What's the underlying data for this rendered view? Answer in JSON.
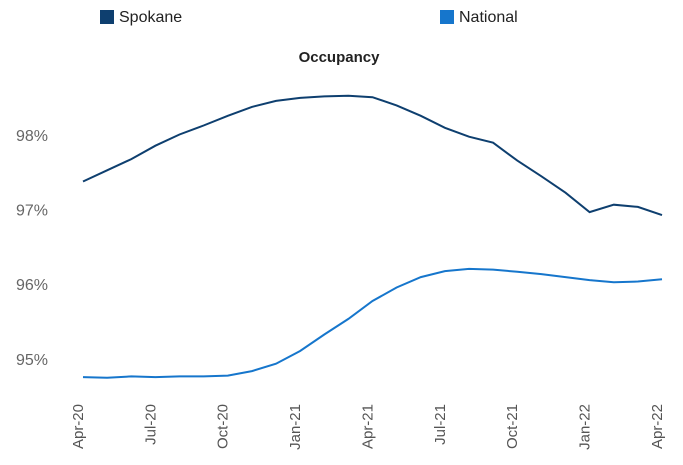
{
  "chart_data": {
    "type": "line",
    "title": "Occupancy",
    "categories": [
      "Apr-20",
      null,
      null,
      "Jul-20",
      null,
      null,
      "Oct-20",
      null,
      null,
      "Jan-21",
      null,
      null,
      "Apr-21",
      null,
      null,
      "Jul-21",
      null,
      null,
      "Oct-21",
      null,
      null,
      "Jan-22",
      null,
      null,
      "Apr-22"
    ],
    "series": [
      {
        "name": "Spokane",
        "color": "#0e3f6f",
        "values": [
          97.4,
          97.55,
          97.7,
          97.88,
          98.03,
          98.15,
          98.28,
          98.4,
          98.48,
          98.52,
          98.54,
          98.55,
          98.53,
          98.42,
          98.28,
          98.12,
          98.0,
          97.92,
          97.68,
          97.47,
          97.25,
          96.99,
          97.09,
          97.06,
          96.95
        ]
      },
      {
        "name": "National",
        "color": "#1676cc",
        "values": [
          94.78,
          94.77,
          94.79,
          94.78,
          94.79,
          94.79,
          94.8,
          94.86,
          94.96,
          95.13,
          95.35,
          95.56,
          95.8,
          95.98,
          96.12,
          96.2,
          96.23,
          96.22,
          96.19,
          96.16,
          96.12,
          96.08,
          96.05,
          96.06,
          96.09
        ]
      }
    ],
    "ylim": [
      94.5,
      98.8
    ],
    "yticks": [
      {
        "value": 95,
        "label": "95%"
      },
      {
        "value": 96,
        "label": "96%"
      },
      {
        "value": 97,
        "label": "97%"
      },
      {
        "value": 98,
        "label": "98%"
      }
    ],
    "grid": false,
    "legend": "top"
  }
}
